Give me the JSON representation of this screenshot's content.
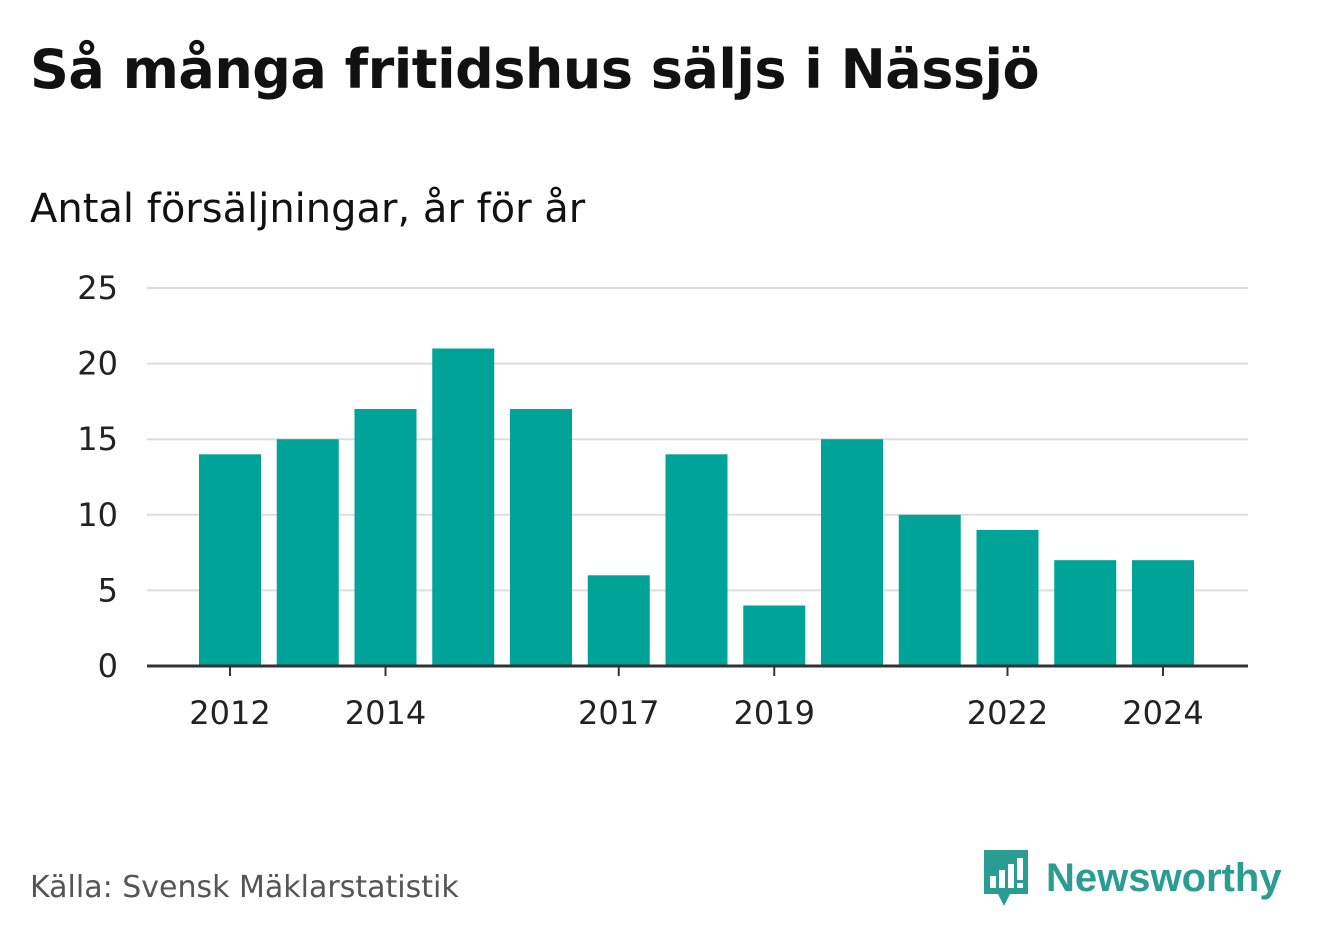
{
  "header": {
    "title": "Så många fritidshus säljs i Nässjö",
    "subtitle": "Antal försäljningar, år för år"
  },
  "footer": {
    "source": "Källa: Svensk Mäklarstatistik",
    "brand": "Newsworthy",
    "brand_icon": "bar-chart-speech-bubble-icon"
  },
  "colors": {
    "bar": "#00a398",
    "grid": "#dddddd",
    "axis": "#333333",
    "brand": "#2a9d92"
  },
  "chart_data": {
    "type": "bar",
    "categories": [
      "2012",
      "2013",
      "2014",
      "2015",
      "2016",
      "2017",
      "2018",
      "2019",
      "2020",
      "2021",
      "2022",
      "2023",
      "2024"
    ],
    "values": [
      14,
      15,
      17,
      21,
      17,
      6,
      14,
      4,
      15,
      10,
      9,
      7,
      7
    ],
    "x_tick_labels": [
      "2012",
      "2014",
      "2017",
      "2019",
      "2022",
      "2024"
    ],
    "y_ticks": [
      0,
      5,
      10,
      15,
      20,
      25
    ],
    "ylim": [
      0,
      25
    ],
    "grid": true,
    "legend": "none"
  }
}
